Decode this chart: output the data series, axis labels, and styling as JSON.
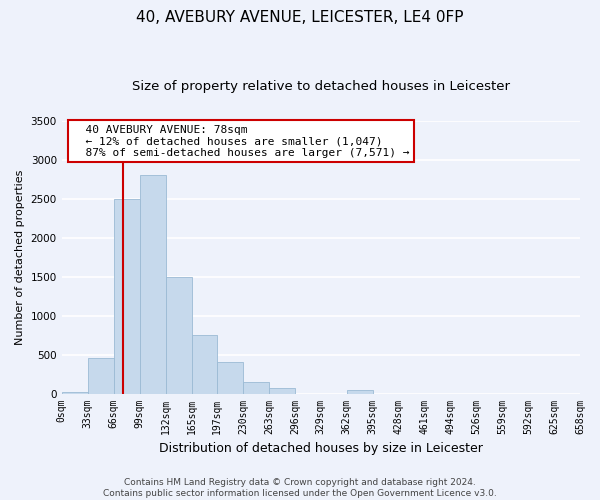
{
  "title": "40, AVEBURY AVENUE, LEICESTER, LE4 0FP",
  "subtitle": "Size of property relative to detached houses in Leicester",
  "xlabel": "Distribution of detached houses by size in Leicester",
  "ylabel": "Number of detached properties",
  "bar_edges": [
    0,
    33,
    66,
    99,
    132,
    165,
    197,
    230,
    263,
    296,
    329,
    362,
    395,
    428,
    461,
    494,
    526,
    559,
    592,
    625,
    658
  ],
  "bar_heights": [
    20,
    450,
    2500,
    2800,
    1500,
    750,
    400,
    150,
    70,
    0,
    0,
    50,
    0,
    0,
    0,
    0,
    0,
    0,
    0,
    0
  ],
  "bar_color": "#c6d9ec",
  "bar_edge_color": "#9bbad4",
  "vline_x": 78,
  "vline_color": "#cc0000",
  "ylim": [
    0,
    3500
  ],
  "yticks": [
    0,
    500,
    1000,
    1500,
    2000,
    2500,
    3000,
    3500
  ],
  "xtick_labels": [
    "0sqm",
    "33sqm",
    "66sqm",
    "99sqm",
    "132sqm",
    "165sqm",
    "197sqm",
    "230sqm",
    "263sqm",
    "296sqm",
    "329sqm",
    "362sqm",
    "395sqm",
    "428sqm",
    "461sqm",
    "494sqm",
    "526sqm",
    "559sqm",
    "592sqm",
    "625sqm",
    "658sqm"
  ],
  "annotation_lines": [
    "  40 AVEBURY AVENUE: 78sqm",
    "  ← 12% of detached houses are smaller (1,047)",
    "  87% of semi-detached houses are larger (7,571) →"
  ],
  "annotation_box_color": "#ffffff",
  "annotation_box_edge": "#cc0000",
  "footer_line1": "Contains HM Land Registry data © Crown copyright and database right 2024.",
  "footer_line2": "Contains public sector information licensed under the Open Government Licence v3.0.",
  "background_color": "#eef2fb",
  "grid_color": "#ffffff",
  "title_fontsize": 11,
  "subtitle_fontsize": 9.5,
  "ylabel_fontsize": 8,
  "xlabel_fontsize": 9,
  "tick_fontsize": 7,
  "annotation_fontsize": 8,
  "footer_fontsize": 6.5
}
